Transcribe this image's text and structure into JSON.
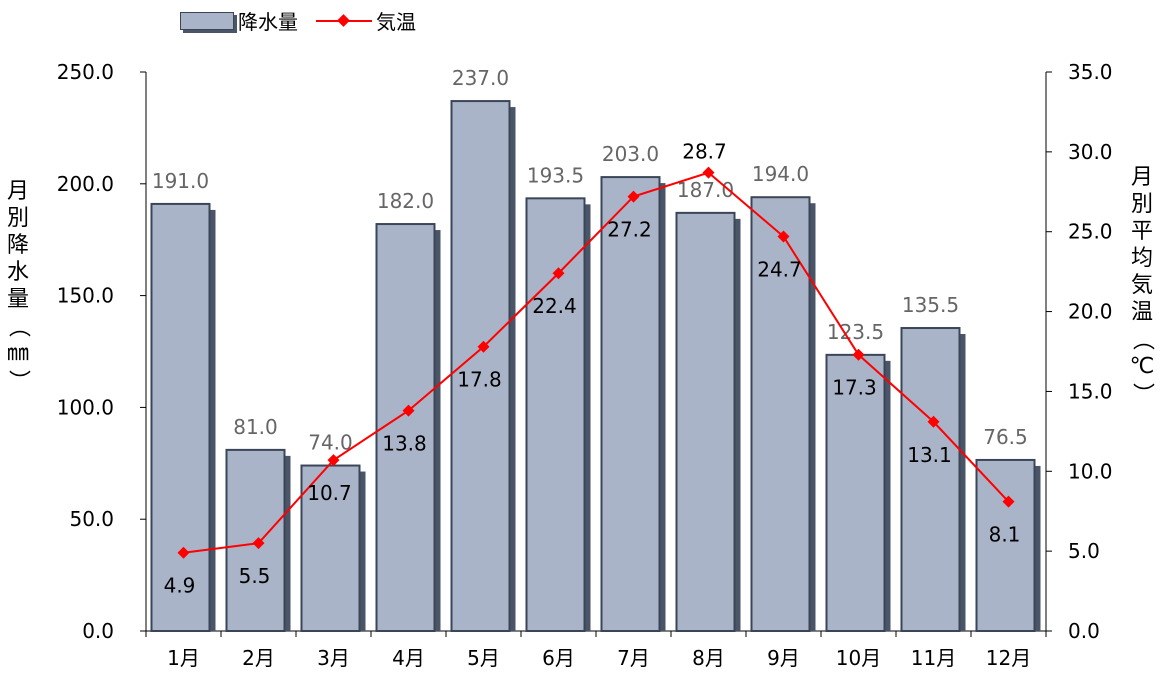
{
  "legend": {
    "bar_label": "降水量",
    "line_label": "気温"
  },
  "left_axis_label": [
    "月",
    "別",
    "降",
    "水",
    "量",
    "（",
    "㎜",
    "）"
  ],
  "right_axis_label": [
    "月",
    "別",
    "平",
    "均",
    "気",
    "温",
    "（",
    "℃",
    "）"
  ],
  "chart_data": {
    "type": "bar",
    "categories": [
      "1月",
      "2月",
      "3月",
      "4月",
      "5月",
      "6月",
      "7月",
      "8月",
      "9月",
      "10月",
      "11月",
      "12月"
    ],
    "series": [
      {
        "name": "降水量",
        "type": "bar",
        "axis": "left",
        "values": [
          191.0,
          81.0,
          74.0,
          182.0,
          237.0,
          193.5,
          203.0,
          187.0,
          194.0,
          123.5,
          135.5,
          76.5
        ],
        "labels": [
          "191.0",
          "81.0",
          "74.0",
          "182.0",
          "237.0",
          "193.5",
          "203.0",
          "187.0",
          "194.0",
          "123.5",
          "135.5",
          "76.5"
        ],
        "color": "#aab4c8",
        "edge_color": "#3a4658",
        "shadow_color": "#4a5568"
      },
      {
        "name": "気温",
        "type": "line",
        "axis": "right",
        "values": [
          4.9,
          5.5,
          10.7,
          13.8,
          17.8,
          22.4,
          27.2,
          28.7,
          24.7,
          17.3,
          13.1,
          8.1
        ],
        "labels": [
          "4.9",
          "5.5",
          "10.7",
          "13.8",
          "17.8",
          "22.4",
          "27.2",
          "28.7",
          "24.7",
          "17.3",
          "13.1",
          "8.1"
        ],
        "color": "#ff0000",
        "marker": "diamond"
      }
    ],
    "y_left": {
      "min": 0,
      "max": 250,
      "ticks": [
        "0.0",
        "50.0",
        "100.0",
        "150.0",
        "200.0",
        "250.0"
      ]
    },
    "y_right": {
      "min": 0,
      "max": 35,
      "ticks": [
        "0.0",
        "5.0",
        "10.0",
        "15.0",
        "20.0",
        "25.0",
        "30.0",
        "35.0"
      ]
    },
    "grid": false,
    "legend_position": "top-left"
  }
}
